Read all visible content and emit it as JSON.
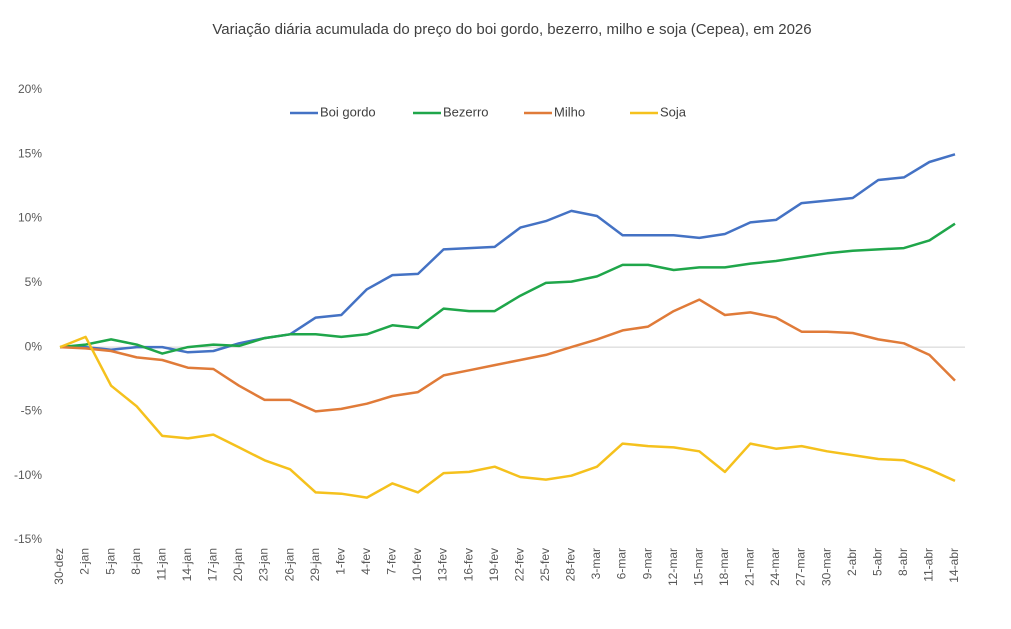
{
  "chart_data": {
    "type": "line",
    "title": "Variação diária acumulada do preço do boi gordo, bezerro, milho e soja (Cepea), em 2026",
    "categories": [
      "30-dez",
      "2-jan",
      "5-jan",
      "8-jan",
      "11-jan",
      "14-jan",
      "17-jan",
      "20-jan",
      "23-jan",
      "26-jan",
      "29-jan",
      "1-fev",
      "4-fev",
      "7-fev",
      "10-fev",
      "13-fev",
      "16-fev",
      "19-fev",
      "22-fev",
      "25-fev",
      "28-fev",
      "3-mar",
      "6-mar",
      "9-mar",
      "12-mar",
      "15-mar",
      "18-mar",
      "21-mar",
      "24-mar",
      "27-mar",
      "30-mar",
      "2-abr",
      "5-abr",
      "8-abr",
      "11-abr",
      "14-abr"
    ],
    "series": [
      {
        "name": "Boi gordo",
        "color": "#4472c4",
        "values": [
          0,
          0,
          -0.2,
          0,
          0,
          -0.4,
          -0.3,
          0.3,
          0.7,
          1.0,
          2.3,
          2.5,
          4.5,
          5.6,
          5.7,
          7.6,
          7.7,
          7.8,
          9.3,
          9.8,
          10.6,
          10.2,
          8.7,
          8.7,
          8.7,
          8.5,
          8.8,
          9.7,
          9.9,
          11.2,
          11.4,
          11.6,
          13.0,
          13.2,
          14.4,
          15.0
        ]
      },
      {
        "name": "Bezerro",
        "color": "#1fa64a",
        "values": [
          0,
          0.2,
          0.6,
          0.2,
          -0.5,
          0,
          0.2,
          0.1,
          0.7,
          1.0,
          1.0,
          0.8,
          1.0,
          1.7,
          1.5,
          3.0,
          2.8,
          2.8,
          4.0,
          5.0,
          5.1,
          5.5,
          6.4,
          6.4,
          6.0,
          6.2,
          6.2,
          6.5,
          6.7,
          7.0,
          7.3,
          7.5,
          7.6,
          7.7,
          8.3,
          9.6
        ]
      },
      {
        "name": "Milho",
        "color": "#e07b39",
        "values": [
          0,
          -0.1,
          -0.3,
          -0.8,
          -1.0,
          -1.6,
          -1.7,
          -3.0,
          -4.1,
          -4.1,
          -5.0,
          -4.8,
          -4.4,
          -3.8,
          -3.5,
          -2.2,
          -1.8,
          -1.4,
          -1.0,
          -0.6,
          0,
          0.6,
          1.3,
          1.6,
          2.8,
          3.7,
          2.5,
          2.7,
          2.3,
          1.2,
          1.2,
          1.1,
          0.6,
          0.3,
          -0.6,
          -2.6
        ]
      },
      {
        "name": "Soja",
        "color": "#f5c11d",
        "values": [
          0,
          0.8,
          -3.0,
          -4.6,
          -6.9,
          -7.1,
          -6.8,
          -7.8,
          -8.8,
          -9.5,
          -11.3,
          -11.4,
          -11.7,
          -10.6,
          -11.3,
          -9.8,
          -9.7,
          -9.3,
          -10.1,
          -10.3,
          -10.0,
          -9.3,
          -7.5,
          -7.7,
          -7.8,
          -8.1,
          -9.7,
          -7.5,
          -7.9,
          -7.7,
          -8.1,
          -8.4,
          -8.7,
          -8.8,
          -9.5,
          -10.4
        ]
      }
    ],
    "ylim": [
      -15,
      20
    ],
    "yticks": [
      {
        "value": -15,
        "label": "-15%"
      },
      {
        "value": -10,
        "label": "-10%"
      },
      {
        "value": -5,
        "label": "-5%"
      },
      {
        "value": 0,
        "label": "0%"
      },
      {
        "value": 5,
        "label": "5%"
      },
      {
        "value": 10,
        "label": "10%"
      },
      {
        "value": 15,
        "label": "15%"
      },
      {
        "value": 20,
        "label": "20%"
      }
    ],
    "grid": false,
    "legend": "top"
  }
}
